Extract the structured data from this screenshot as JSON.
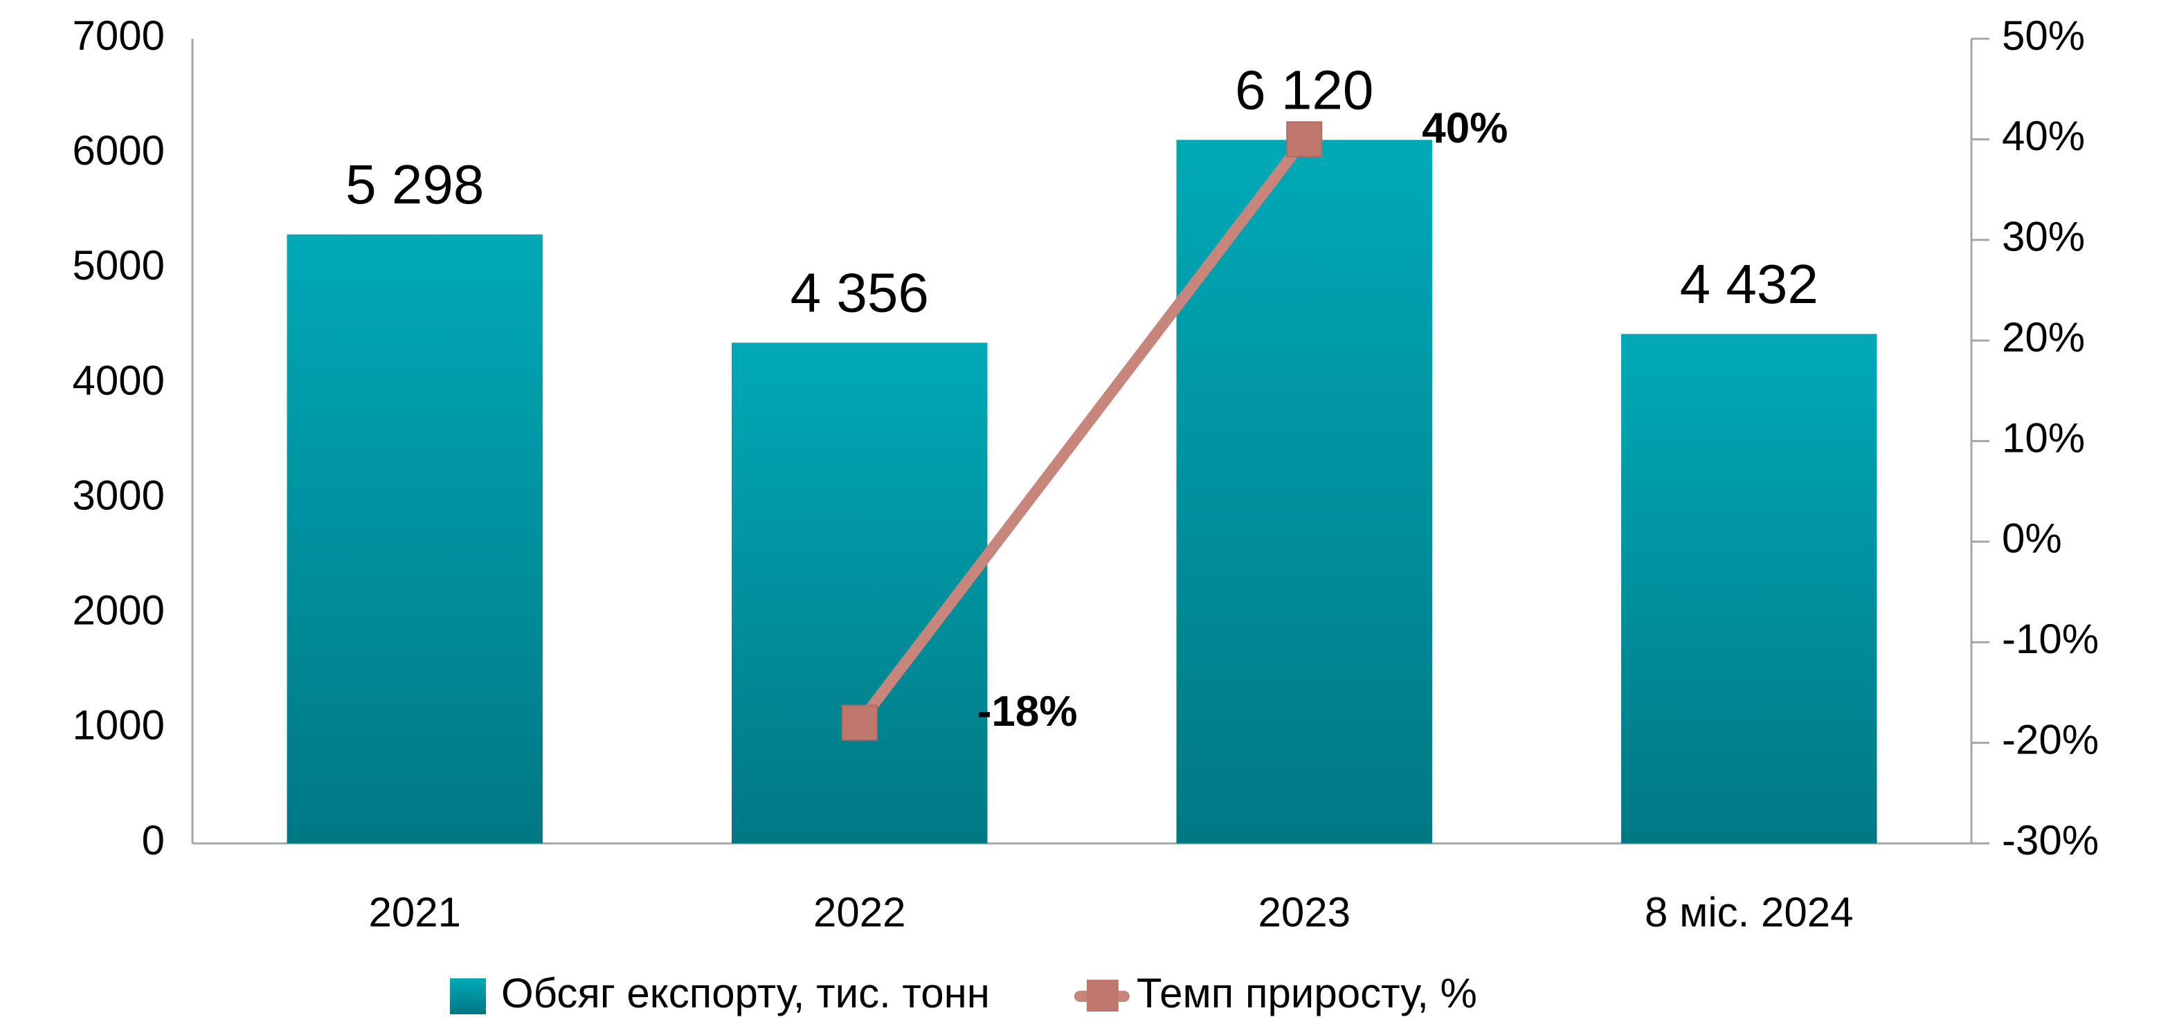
{
  "chart_data": {
    "type": "bar",
    "categories": [
      "2021",
      "2022",
      "2023",
      "8 міс. 2024"
    ],
    "series": [
      {
        "name": "Обсяг експорту, тис. тонн",
        "type": "bar",
        "color": "#009aa6",
        "values": [
          5298,
          4356,
          6120,
          4432
        ],
        "value_labels": [
          "5 298",
          "4 356",
          "6 120",
          "4 432"
        ]
      },
      {
        "name": "Темп приросту, %",
        "type": "line",
        "axis": "y2",
        "color": "#c8857c",
        "values": [
          null,
          -18,
          40,
          null
        ],
        "value_labels": [
          null,
          "-18%",
          "40%",
          null
        ]
      }
    ],
    "ylim": [
      0,
      7000
    ],
    "yticks": [
      0,
      1000,
      2000,
      3000,
      4000,
      5000,
      6000,
      7000
    ],
    "y2lim": [
      -30,
      50
    ],
    "y2ticks": [
      {
        "value": -30,
        "label": "-30%"
      },
      {
        "value": -20,
        "label": "-20%"
      },
      {
        "value": -10,
        "label": "-10%"
      },
      {
        "value": 0,
        "label": "0%"
      },
      {
        "value": 10,
        "label": "10%"
      },
      {
        "value": 20,
        "label": "20%"
      },
      {
        "value": 30,
        "label": "30%"
      },
      {
        "value": 40,
        "label": "40%"
      },
      {
        "value": 50,
        "label": "50%"
      }
    ]
  }
}
